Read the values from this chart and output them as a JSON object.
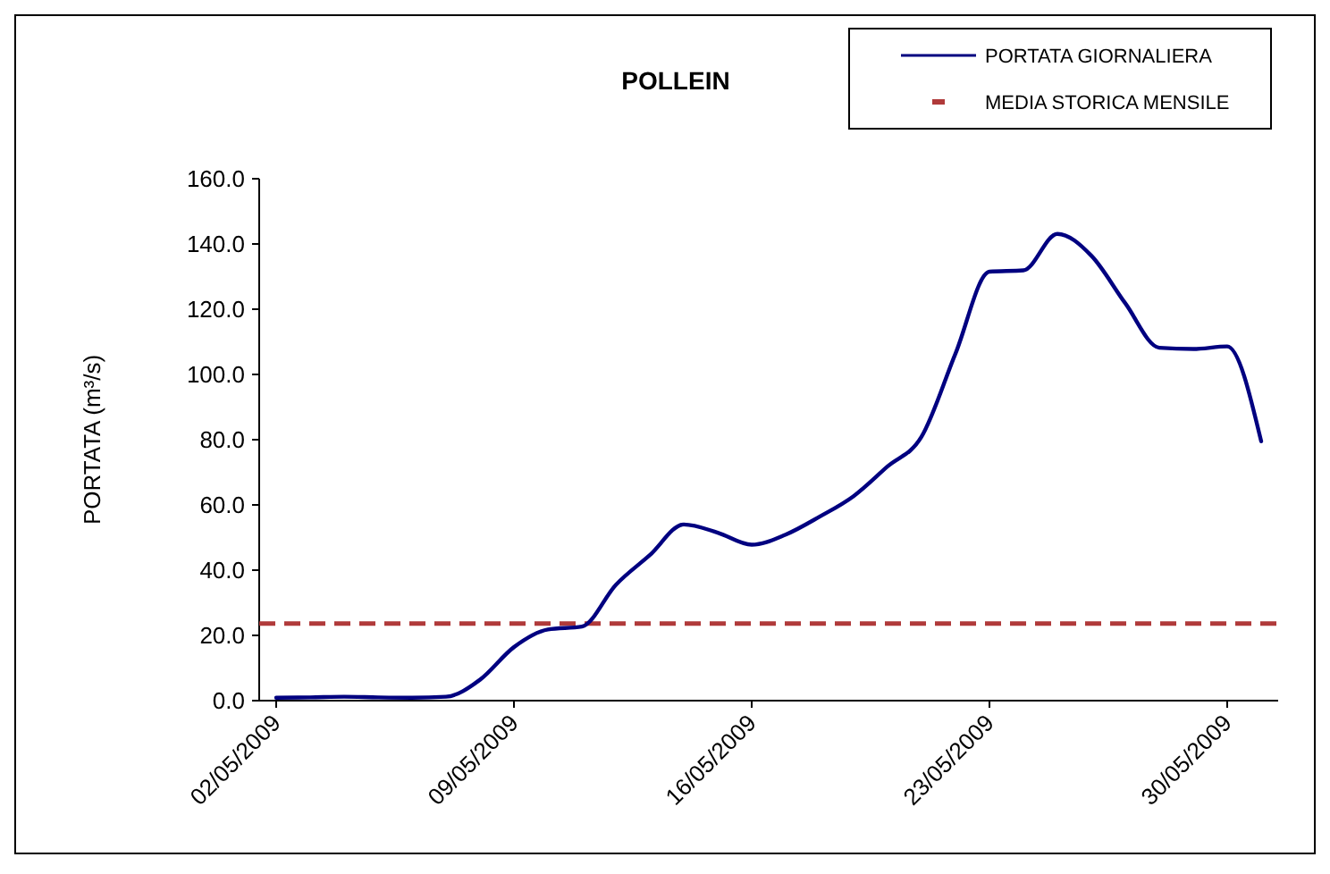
{
  "chart_data": {
    "type": "line",
    "title": "POLLEIN",
    "ylabel": "PORTATA (m³/s)",
    "x": [
      "2009-05-02",
      "2009-05-03",
      "2009-05-04",
      "2009-05-05",
      "2009-05-06",
      "2009-05-07",
      "2009-05-08",
      "2009-05-09",
      "2009-05-10",
      "2009-05-11",
      "2009-05-12",
      "2009-05-13",
      "2009-05-14",
      "2009-05-15",
      "2009-05-16",
      "2009-05-17",
      "2009-05-18",
      "2009-05-19",
      "2009-05-20",
      "2009-05-21",
      "2009-05-22",
      "2009-05-23",
      "2009-05-24",
      "2009-05-25",
      "2009-05-26",
      "2009-05-27",
      "2009-05-28",
      "2009-05-29",
      "2009-05-30",
      "2009-05-31"
    ],
    "series": [
      {
        "name": "PORTATA GIORNALIERA",
        "color": "#000080",
        "values": [
          0.9,
          1.0,
          1.2,
          1.0,
          0.9,
          1.2,
          6.4,
          16.4,
          21.8,
          22.7,
          35.5,
          44.6,
          54.0,
          51.5,
          47.8,
          50.9,
          56.4,
          62.7,
          71.8,
          80.9,
          106.4,
          131.5,
          131.9,
          143.1,
          136.4,
          121.8,
          108.2,
          107.8,
          108.6,
          79.5
        ]
      }
    ],
    "ref_lines": [
      {
        "axis": "y",
        "value": 23.6,
        "label": "MEDIA STORICA MENSILE",
        "color": "#b03a3a",
        "line_style": "dashed"
      }
    ],
    "xlim": [
      "2009-05-01T12:00",
      "2009-05-31T12:00"
    ],
    "xticks": [
      {
        "value": "2009-05-02",
        "label": "02/05/2009"
      },
      {
        "value": "2009-05-09",
        "label": "09/05/2009"
      },
      {
        "value": "2009-05-16",
        "label": "16/05/2009"
      },
      {
        "value": "2009-05-23",
        "label": "23/05/2009"
      },
      {
        "value": "2009-05-30",
        "label": "30/05/2009"
      }
    ],
    "ylim": [
      0,
      160
    ],
    "yticks": [
      {
        "value": 0,
        "label": "0.0"
      },
      {
        "value": 20,
        "label": "20.0"
      },
      {
        "value": 40,
        "label": "40.0"
      },
      {
        "value": 60,
        "label": "60.0"
      },
      {
        "value": 80,
        "label": "80.0"
      },
      {
        "value": 100,
        "label": "100.0"
      },
      {
        "value": 120,
        "label": "120.0"
      },
      {
        "value": 140,
        "label": "140.0"
      },
      {
        "value": 160,
        "label": "160.0"
      }
    ],
    "grid": false,
    "legend": "top right",
    "line_style": "solid",
    "marker": "none"
  }
}
